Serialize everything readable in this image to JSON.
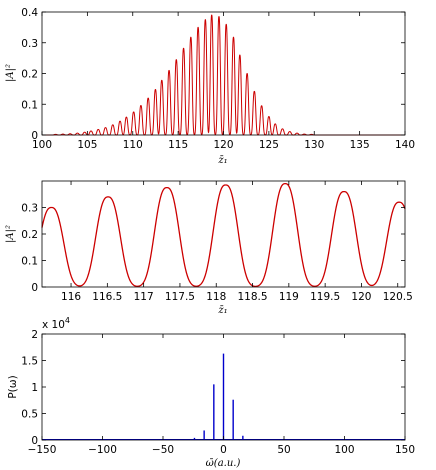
{
  "chart_data": [
    {
      "type": "line",
      "title": "",
      "xlabel": "z̄₁",
      "ylabel": "|A|²",
      "xlim": [
        100,
        140
      ],
      "ylim": [
        0,
        0.4
      ],
      "xticks": [
        "100",
        "105",
        "110",
        "115",
        "120",
        "125",
        "130",
        "135",
        "140"
      ],
      "yticks": [
        "0",
        "0.1",
        "0.2",
        "0.3",
        "0.4"
      ],
      "grid": false,
      "color": "#cc0000",
      "series": [
        {
          "pulse_period": 0.78,
          "peaks": [
            {
              "x": 101.5,
              "y": 0.002
            },
            {
              "x": 102.3,
              "y": 0.003
            },
            {
              "x": 103.1,
              "y": 0.004
            },
            {
              "x": 103.9,
              "y": 0.006
            },
            {
              "x": 104.7,
              "y": 0.009
            },
            {
              "x": 105.4,
              "y": 0.013
            },
            {
              "x": 106.2,
              "y": 0.018
            },
            {
              "x": 107.0,
              "y": 0.024
            },
            {
              "x": 107.8,
              "y": 0.033
            },
            {
              "x": 108.6,
              "y": 0.045
            },
            {
              "x": 109.3,
              "y": 0.058
            },
            {
              "x": 110.1,
              "y": 0.075
            },
            {
              "x": 110.9,
              "y": 0.096
            },
            {
              "x": 111.7,
              "y": 0.12
            },
            {
              "x": 112.5,
              "y": 0.148
            },
            {
              "x": 113.2,
              "y": 0.178
            },
            {
              "x": 114.0,
              "y": 0.21
            },
            {
              "x": 114.8,
              "y": 0.245
            },
            {
              "x": 115.6,
              "y": 0.282
            },
            {
              "x": 116.4,
              "y": 0.318
            },
            {
              "x": 117.2,
              "y": 0.35
            },
            {
              "x": 118.0,
              "y": 0.375
            },
            {
              "x": 118.7,
              "y": 0.39
            },
            {
              "x": 119.5,
              "y": 0.385
            },
            {
              "x": 120.3,
              "y": 0.36
            },
            {
              "x": 121.1,
              "y": 0.318
            },
            {
              "x": 121.8,
              "y": 0.26
            },
            {
              "x": 122.6,
              "y": 0.2
            },
            {
              "x": 123.4,
              "y": 0.142
            },
            {
              "x": 124.2,
              "y": 0.095
            },
            {
              "x": 125.0,
              "y": 0.06
            },
            {
              "x": 125.7,
              "y": 0.036
            },
            {
              "x": 126.5,
              "y": 0.02
            },
            {
              "x": 127.3,
              "y": 0.011
            },
            {
              "x": 128.1,
              "y": 0.006
            },
            {
              "x": 128.9,
              "y": 0.003
            },
            {
              "x": 129.7,
              "y": 0.002
            }
          ]
        }
      ]
    },
    {
      "type": "line",
      "title": "",
      "xlabel": "z̄₁",
      "ylabel": "|A|²",
      "xlim": [
        115.6,
        120.6
      ],
      "ylim": [
        0,
        0.4
      ],
      "xticks": [
        "116",
        "116.5",
        "117",
        "117.5",
        "118",
        "118.5",
        "119",
        "119.5",
        "120",
        "120.5"
      ],
      "yticks": [
        "0",
        "0.1",
        "0.2",
        "0.3"
      ],
      "grid": false,
      "color": "#cc0000",
      "series": [
        {
          "pulse_period": 0.78,
          "peaks": [
            {
              "x": 115.73,
              "y": 0.3
            },
            {
              "x": 116.51,
              "y": 0.34
            },
            {
              "x": 117.32,
              "y": 0.375
            },
            {
              "x": 118.13,
              "y": 0.385
            },
            {
              "x": 118.95,
              "y": 0.39
            },
            {
              "x": 119.76,
              "y": 0.36
            },
            {
              "x": 120.52,
              "y": 0.32
            }
          ]
        }
      ]
    },
    {
      "type": "bar",
      "title": "",
      "xlabel": "ω̄(a.u.)",
      "ylabel": "P(ω)",
      "exponent_label": "x 10",
      "exponent_power": "4",
      "xlim": [
        -150,
        150
      ],
      "ylim": [
        0,
        2
      ],
      "xticks": [
        "−150",
        "−100",
        "−50",
        "0",
        "50",
        "100",
        "150"
      ],
      "yticks": [
        "0",
        "0.5",
        "1",
        "1.5",
        "2"
      ],
      "grid": false,
      "color": "#0000cc",
      "series": [
        {
          "lines": [
            {
              "x": -24,
              "y": 0.04
            },
            {
              "x": -16,
              "y": 0.18
            },
            {
              "x": -8,
              "y": 1.05
            },
            {
              "x": 0,
              "y": 1.63
            },
            {
              "x": 8,
              "y": 0.76
            },
            {
              "x": 16,
              "y": 0.08
            },
            {
              "x": 24,
              "y": 0.01
            }
          ]
        }
      ]
    }
  ]
}
